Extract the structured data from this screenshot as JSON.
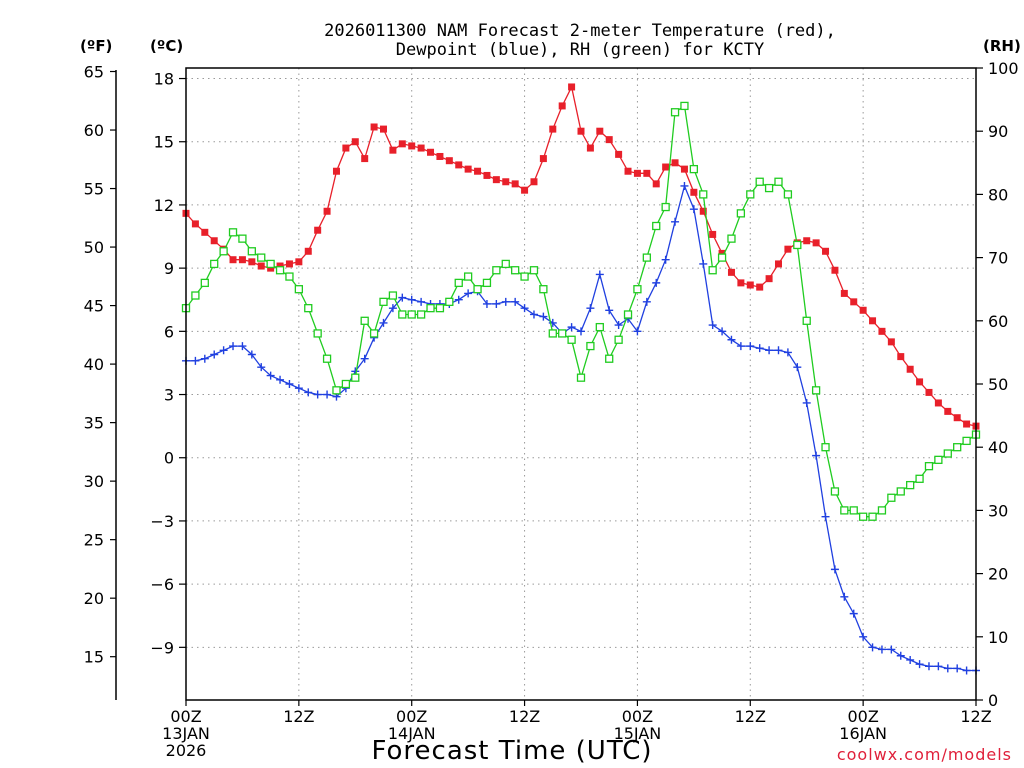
{
  "chart_data": {
    "type": "line",
    "title_lines": [
      "2026011300 NAM Forecast 2-meter Temperature (red),",
      "Dewpoint (blue), RH (green) for KCTY"
    ],
    "xlabel": "Forecast Time (UTC)",
    "credit": "coolwx.com/models",
    "unit_labels": {
      "f": "(ºF)",
      "c": "(ºC)",
      "rh": "(RH)"
    },
    "x_hours": {
      "min": 0,
      "max": 84,
      "step": 1
    },
    "x_ticks": [
      {
        "hour": 0,
        "lines": [
          "00Z",
          "13JAN",
          "2026"
        ]
      },
      {
        "hour": 12,
        "lines": [
          "12Z"
        ]
      },
      {
        "hour": 24,
        "lines": [
          "00Z",
          "14JAN"
        ]
      },
      {
        "hour": 36,
        "lines": [
          "12Z"
        ]
      },
      {
        "hour": 48,
        "lines": [
          "00Z",
          "15JAN"
        ]
      },
      {
        "hour": 60,
        "lines": [
          "12Z"
        ]
      },
      {
        "hour": 72,
        "lines": [
          "00Z",
          "16JAN"
        ]
      },
      {
        "hour": 84,
        "lines": [
          "12Z"
        ]
      }
    ],
    "y_celsius": {
      "min": -11.5,
      "max": 18.5,
      "ticks": [
        18,
        15,
        12,
        9,
        6,
        3,
        0,
        -3,
        -6,
        -9
      ],
      "tick_labels": [
        "18",
        "15",
        "12",
        "9",
        "6",
        "3",
        "0",
        "−3",
        "−6",
        "−9"
      ]
    },
    "y_fahrenheit": {
      "ticks": [
        65,
        60,
        55,
        50,
        45,
        40,
        35,
        30,
        25,
        20,
        15
      ],
      "tick_labels": [
        "65",
        "60",
        "55",
        "50",
        "45",
        "40",
        "35",
        "30",
        "25",
        "20",
        "15"
      ]
    },
    "y_rh": {
      "min": 0,
      "max": 100,
      "ticks": [
        100,
        90,
        80,
        70,
        60,
        50,
        40,
        30,
        20,
        10,
        0
      ],
      "tick_labels": [
        "100",
        "90",
        "80",
        "70",
        "60",
        "50",
        "40",
        "30",
        "20",
        "10",
        "0"
      ]
    },
    "grid": true,
    "series": [
      {
        "name": "Temperature",
        "axis": "celsius",
        "color": "#e8202a",
        "marker": "filled-square",
        "values": [
          11.6,
          11.1,
          10.7,
          10.3,
          9.9,
          9.4,
          9.4,
          9.3,
          9.1,
          9.0,
          9.1,
          9.2,
          9.3,
          9.8,
          10.8,
          11.7,
          13.6,
          14.7,
          15.0,
          14.2,
          15.7,
          15.6,
          14.6,
          14.9,
          14.8,
          14.7,
          14.5,
          14.3,
          14.1,
          13.9,
          13.7,
          13.6,
          13.4,
          13.2,
          13.1,
          13.0,
          12.7,
          13.1,
          14.2,
          15.6,
          16.7,
          17.6,
          15.5,
          14.7,
          15.5,
          15.1,
          14.4,
          13.6,
          13.5,
          13.5,
          13.0,
          13.8,
          14.0,
          13.7,
          12.6,
          11.7,
          10.6,
          9.7,
          8.8,
          8.3,
          8.2,
          8.1,
          8.5,
          9.2,
          9.9,
          10.2,
          10.3,
          10.2,
          9.8,
          8.9,
          7.8,
          7.4,
          7.0,
          6.5,
          6.0,
          5.5,
          4.8,
          4.2,
          3.6,
          3.1,
          2.6,
          2.2,
          1.9,
          1.6,
          1.5
        ]
      },
      {
        "name": "Dewpoint",
        "axis": "celsius",
        "color": "#2040e0",
        "marker": "plus",
        "values": [
          4.6,
          4.6,
          4.7,
          4.9,
          5.1,
          5.3,
          5.3,
          4.9,
          4.3,
          3.9,
          3.7,
          3.5,
          3.3,
          3.1,
          3.0,
          3.0,
          2.9,
          3.3,
          4.1,
          4.7,
          5.7,
          6.4,
          7.1,
          7.6,
          7.5,
          7.4,
          7.3,
          7.3,
          7.3,
          7.5,
          7.8,
          7.9,
          7.3,
          7.3,
          7.4,
          7.4,
          7.1,
          6.8,
          6.7,
          6.4,
          5.9,
          6.2,
          6.0,
          7.1,
          8.7,
          7.0,
          6.3,
          6.6,
          6.0,
          7.4,
          8.3,
          9.4,
          11.2,
          12.9,
          11.8,
          9.2,
          6.3,
          6.0,
          5.6,
          5.3,
          5.3,
          5.2,
          5.1,
          5.1,
          5.0,
          4.3,
          2.6,
          0.1,
          -2.8,
          -5.3,
          -6.6,
          -7.4,
          -8.5,
          -9.0,
          -9.1,
          -9.1,
          -9.4,
          -9.6,
          -9.8,
          -9.9,
          -9.9,
          -10.0,
          -10.0,
          -10.1,
          -10.1
        ]
      },
      {
        "name": "RH",
        "axis": "rh",
        "color": "#20cc20",
        "marker": "open-square",
        "values": [
          62,
          64,
          66,
          69,
          71,
          74,
          73,
          71,
          70,
          69,
          68,
          67,
          65,
          62,
          58,
          54,
          49,
          50,
          51,
          60,
          58,
          63,
          64,
          61,
          61,
          61,
          62,
          62,
          63,
          66,
          67,
          65,
          66,
          68,
          69,
          68,
          67,
          68,
          65,
          58,
          58,
          57,
          51,
          56,
          59,
          54,
          57,
          61,
          65,
          70,
          75,
          78,
          93,
          94,
          84,
          80,
          68,
          70,
          73,
          77,
          80,
          82,
          81,
          82,
          80,
          72,
          60,
          49,
          40,
          33,
          30,
          30,
          29,
          29,
          30,
          32,
          33,
          34,
          35,
          37,
          38,
          39,
          40,
          41,
          42
        ]
      }
    ]
  }
}
